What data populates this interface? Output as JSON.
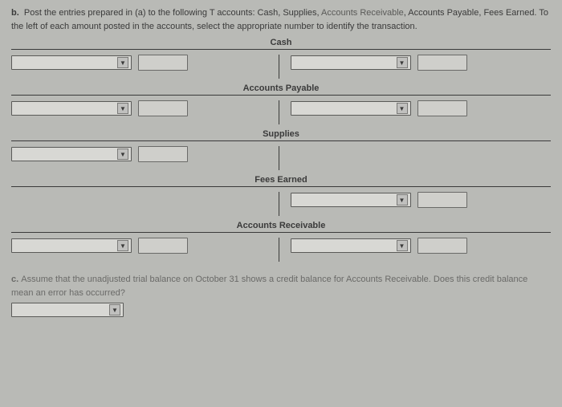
{
  "instruction": {
    "prefix": "b.",
    "text1": "Post the entries prepared in (a) to the following T accounts: Cash, Supplies, ",
    "link_text": "Accounts Receivable",
    "text2": ", Accounts Payable, Fees Earned. To the left of each amount posted in the accounts, select the appropriate number to identify the transaction."
  },
  "accounts": [
    {
      "title": "Cash",
      "left_dd": true,
      "left_amt": true,
      "right_dd": true,
      "right_amt": true
    },
    {
      "title": "Accounts Payable",
      "left_dd": true,
      "left_amt": true,
      "right_dd": true,
      "right_amt": true
    },
    {
      "title": "Supplies",
      "left_dd": true,
      "left_amt": true,
      "right_dd": false,
      "right_amt": false
    },
    {
      "title": "Fees Earned",
      "left_dd": false,
      "left_amt": false,
      "right_dd": true,
      "right_amt": true
    },
    {
      "title": "Accounts Receivable",
      "left_dd": true,
      "left_amt": true,
      "right_dd": true,
      "right_amt": true
    }
  ],
  "part_c": {
    "prefix": "c.",
    "text": "Assume that the unadjusted trial balance on October 31 shows a credit balance for Accounts Receivable. Does this credit balance mean an error has occurred?"
  },
  "colors": {
    "bg": "#b9bab6",
    "text": "#3a3a3a",
    "border": "#3a3a3a",
    "input_bg": "#d8d8d4",
    "input_border": "#5a5a58"
  }
}
